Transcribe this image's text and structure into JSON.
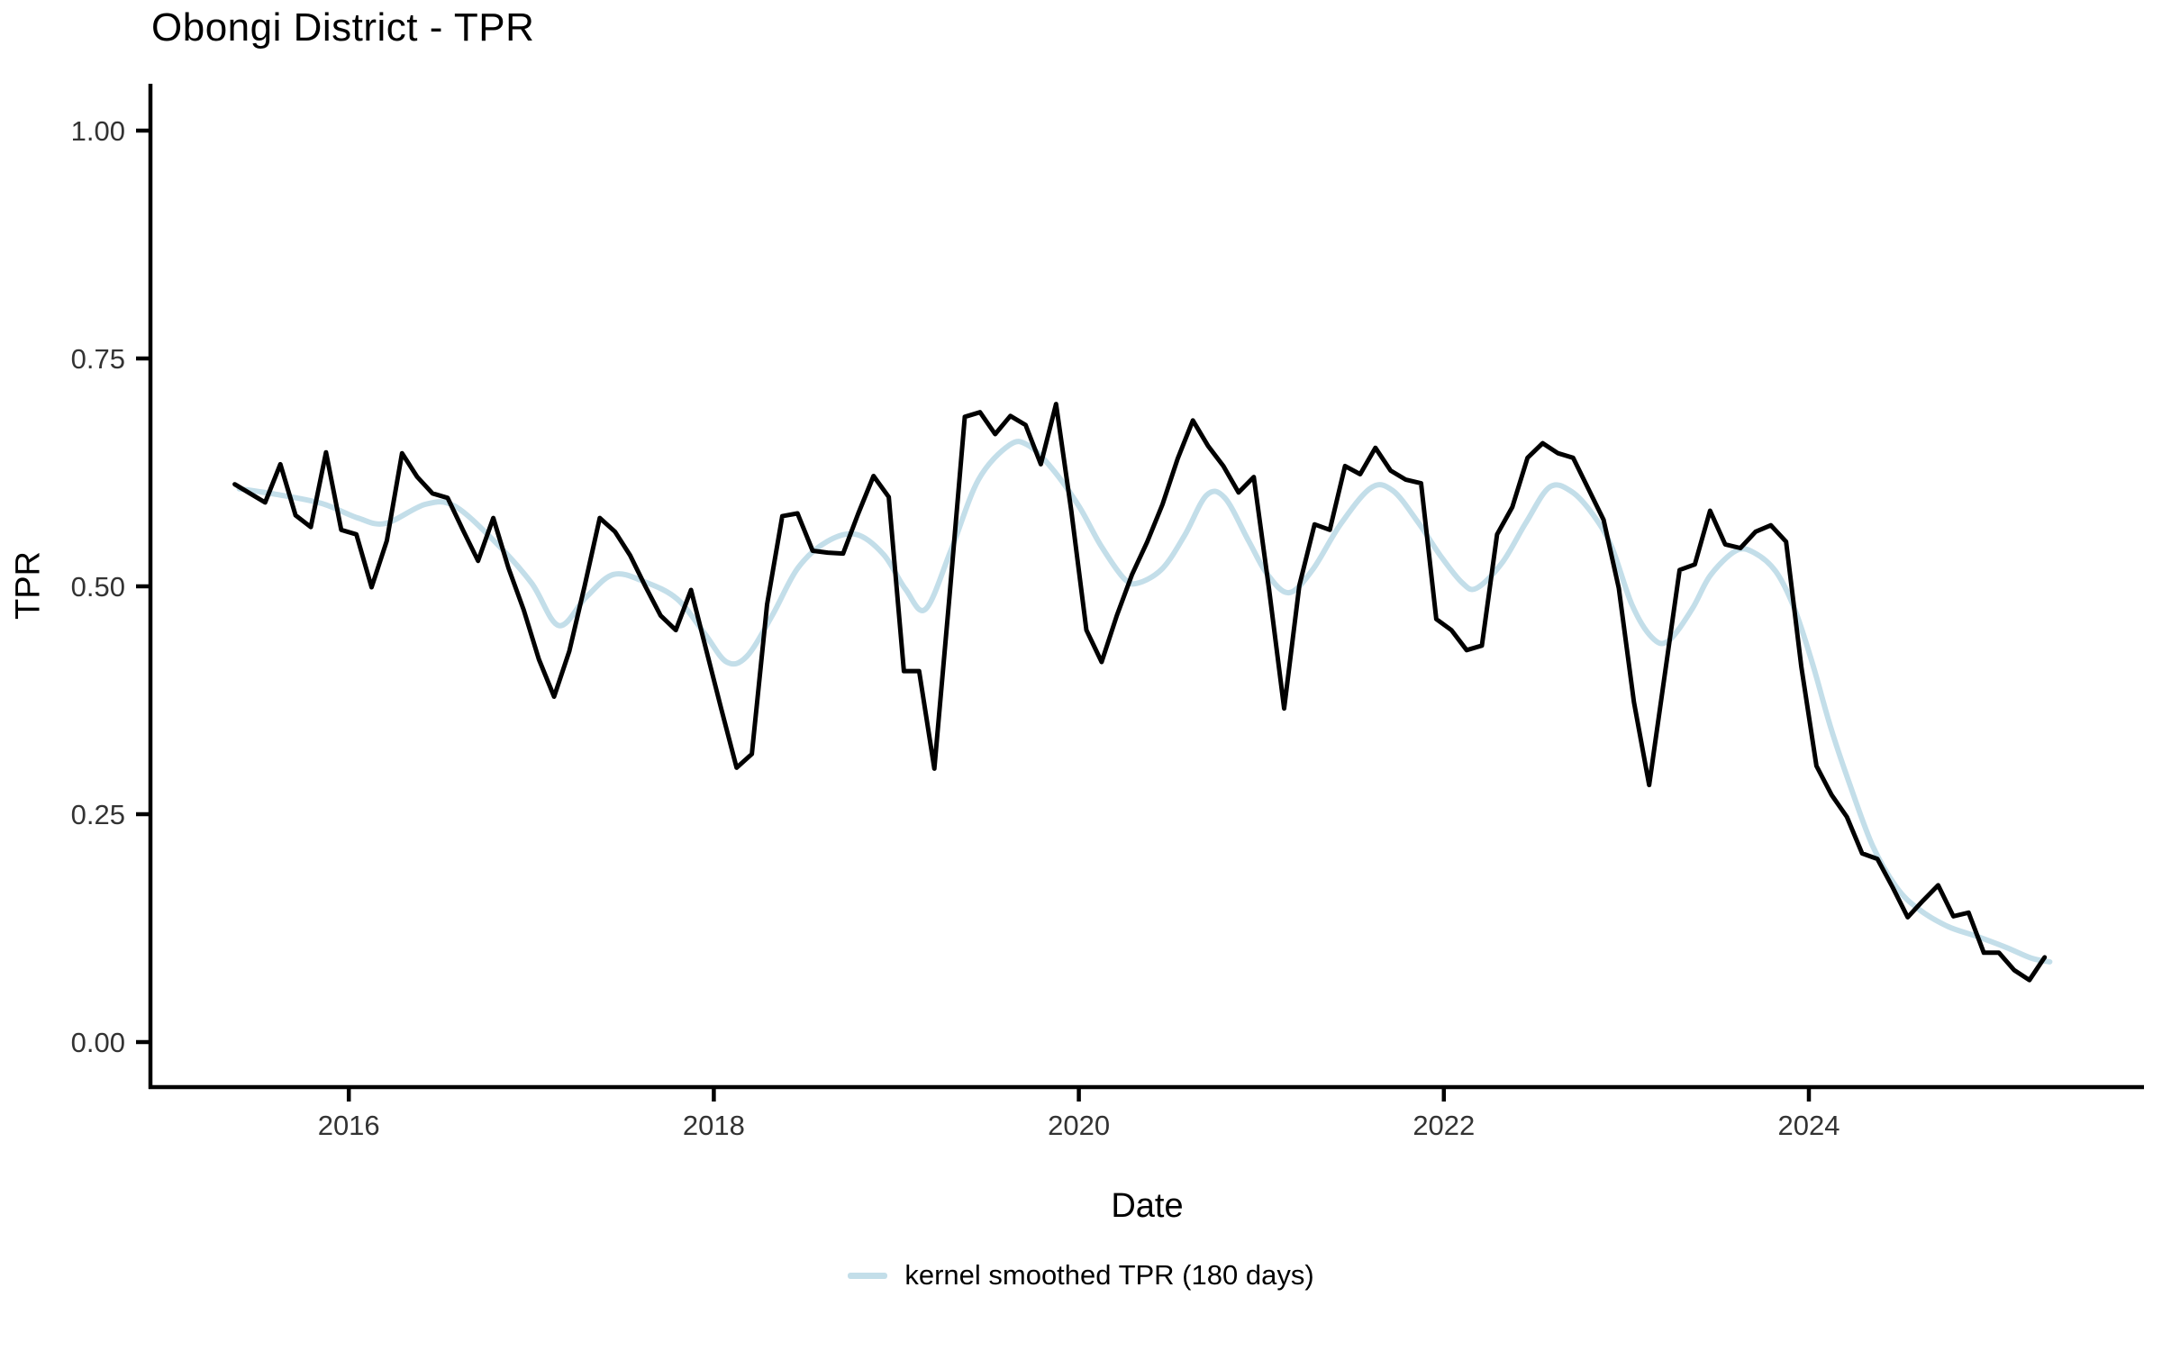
{
  "title": "Obongi District - TPR",
  "axes": {
    "x": {
      "label": "Date",
      "ticks": [
        {
          "value": 2016,
          "label": "2016"
        },
        {
          "value": 2018,
          "label": "2018"
        },
        {
          "value": 2020,
          "label": "2020"
        },
        {
          "value": 2022,
          "label": "2022"
        },
        {
          "value": 2024,
          "label": "2024"
        }
      ]
    },
    "y": {
      "label": "TPR",
      "ticks": [
        {
          "value": 1.0,
          "label": "1.00"
        },
        {
          "value": 0.75,
          "label": "0.75"
        },
        {
          "value": 0.5,
          "label": "0.50"
        },
        {
          "value": 0.25,
          "label": "0.25"
        },
        {
          "value": 0.0,
          "label": "0.00"
        }
      ]
    }
  },
  "legend": {
    "items": [
      {
        "label": "kernel smoothed TPR (180 days)",
        "color": "#c3dee9",
        "shape": "line"
      }
    ]
  },
  "colors": {
    "raw_line": "#000000",
    "smoothed_line": "#c3dee9",
    "axis": "#000000",
    "tick_text": "#333333"
  },
  "chart_data": {
    "type": "line",
    "title": "Obongi District - TPR",
    "xlabel": "Date",
    "ylabel": "TPR",
    "xlim": [
      2014.91,
      2025.84
    ],
    "ylim": [
      0,
      1.0
    ],
    "grid": false,
    "legend_position": "bottom",
    "series": [
      {
        "name": "TPR",
        "color": "#000000",
        "stroke_width": 5,
        "cadence": "monthly",
        "start_year": 2015,
        "start_month": 5,
        "monthly_values": [
          0.612,
          0.602,
          0.592,
          0.634,
          0.578,
          0.565,
          0.647,
          0.562,
          0.557,
          0.499,
          0.55,
          0.646,
          0.62,
          0.602,
          0.597,
          0.562,
          0.528,
          0.575,
          0.52,
          0.474,
          0.42,
          0.379,
          0.429,
          0.5,
          0.575,
          0.56,
          0.534,
          0.5,
          0.468,
          0.452,
          0.496,
          0.43,
          0.365,
          0.301,
          0.316,
          0.48,
          0.577,
          0.58,
          0.539,
          0.537,
          0.536,
          0.58,
          0.621,
          0.598,
          0.407,
          0.407,
          0.3,
          0.49,
          0.686,
          0.691,
          0.667,
          0.687,
          0.677,
          0.634,
          0.7,
          0.583,
          0.452,
          0.417,
          0.468,
          0.513,
          0.549,
          0.59,
          0.64,
          0.682,
          0.654,
          0.632,
          0.603,
          0.62,
          0.498,
          0.366,
          0.501,
          0.568,
          0.562,
          0.632,
          0.623,
          0.652,
          0.627,
          0.617,
          0.613,
          0.464,
          0.452,
          0.43,
          0.435,
          0.557,
          0.587,
          0.641,
          0.657,
          0.646,
          0.641,
          0.607,
          0.573,
          0.498,
          0.373,
          0.282,
          0.4,
          0.518,
          0.524,
          0.583,
          0.546,
          0.542,
          0.56,
          0.567,
          0.549,
          0.412,
          0.303,
          0.271,
          0.247,
          0.207,
          0.201,
          0.17,
          0.137,
          0.155,
          0.172,
          0.138,
          0.142,
          0.098,
          0.098,
          0.079,
          0.068,
          0.093
        ]
      },
      {
        "name": "kernel smoothed TPR (180 days)",
        "color": "#c3dee9",
        "stroke_width": 6,
        "smooth": true,
        "points": [
          [
            2015.4,
            0.607
          ],
          [
            2015.6,
            0.601
          ],
          [
            2015.85,
            0.591
          ],
          [
            2016.05,
            0.575
          ],
          [
            2016.2,
            0.569
          ],
          [
            2016.42,
            0.59
          ],
          [
            2016.58,
            0.588
          ],
          [
            2016.8,
            0.549
          ],
          [
            2017.0,
            0.504
          ],
          [
            2017.15,
            0.457
          ],
          [
            2017.3,
            0.488
          ],
          [
            2017.45,
            0.513
          ],
          [
            2017.62,
            0.505
          ],
          [
            2017.8,
            0.486
          ],
          [
            2017.95,
            0.448
          ],
          [
            2018.07,
            0.417
          ],
          [
            2018.18,
            0.423
          ],
          [
            2018.32,
            0.468
          ],
          [
            2018.46,
            0.52
          ],
          [
            2018.62,
            0.549
          ],
          [
            2018.78,
            0.557
          ],
          [
            2018.93,
            0.535
          ],
          [
            2019.05,
            0.497
          ],
          [
            2019.16,
            0.475
          ],
          [
            2019.3,
            0.54
          ],
          [
            2019.45,
            0.617
          ],
          [
            2019.62,
            0.655
          ],
          [
            2019.72,
            0.655
          ],
          [
            2019.85,
            0.63
          ],
          [
            2020.0,
            0.588
          ],
          [
            2020.12,
            0.545
          ],
          [
            2020.25,
            0.508
          ],
          [
            2020.33,
            0.504
          ],
          [
            2020.46,
            0.52
          ],
          [
            2020.58,
            0.556
          ],
          [
            2020.7,
            0.6
          ],
          [
            2020.8,
            0.597
          ],
          [
            2020.93,
            0.55
          ],
          [
            2021.03,
            0.514
          ],
          [
            2021.15,
            0.493
          ],
          [
            2021.28,
            0.518
          ],
          [
            2021.43,
            0.567
          ],
          [
            2021.6,
            0.608
          ],
          [
            2021.72,
            0.605
          ],
          [
            2021.86,
            0.57
          ],
          [
            2021.98,
            0.534
          ],
          [
            2022.1,
            0.504
          ],
          [
            2022.18,
            0.498
          ],
          [
            2022.32,
            0.526
          ],
          [
            2022.45,
            0.57
          ],
          [
            2022.58,
            0.609
          ],
          [
            2022.7,
            0.604
          ],
          [
            2022.82,
            0.578
          ],
          [
            2022.92,
            0.543
          ],
          [
            2023.03,
            0.48
          ],
          [
            2023.14,
            0.444
          ],
          [
            2023.23,
            0.44
          ],
          [
            2023.36,
            0.475
          ],
          [
            2023.46,
            0.512
          ],
          [
            2023.6,
            0.539
          ],
          [
            2023.7,
            0.537
          ],
          [
            2023.82,
            0.516
          ],
          [
            2023.92,
            0.476
          ],
          [
            2024.02,
            0.415
          ],
          [
            2024.12,
            0.345
          ],
          [
            2024.22,
            0.285
          ],
          [
            2024.35,
            0.215
          ],
          [
            2024.48,
            0.17
          ],
          [
            2024.6,
            0.146
          ],
          [
            2024.76,
            0.127
          ],
          [
            2024.92,
            0.116
          ],
          [
            2025.08,
            0.104
          ],
          [
            2025.22,
            0.092
          ],
          [
            2025.32,
            0.088
          ]
        ]
      }
    ]
  }
}
